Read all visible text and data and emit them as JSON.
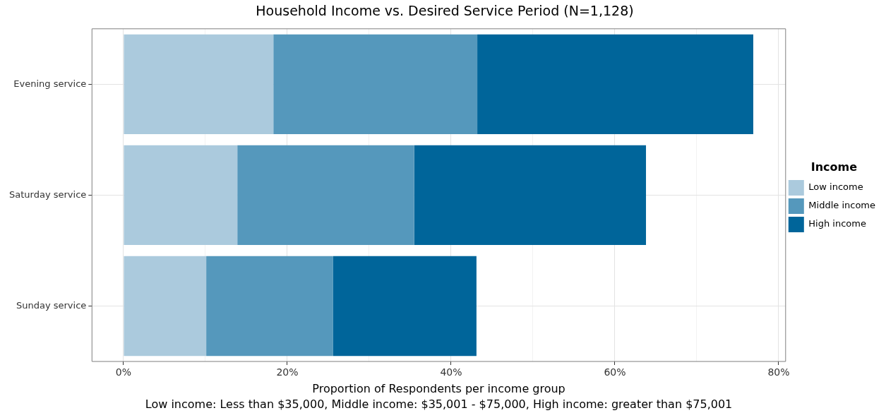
{
  "chart_data": {
    "type": "bar",
    "orientation": "horizontal",
    "stacked": true,
    "title": "Household Income vs. Desired Service Period (N=1,128)",
    "xlabel": "Proportion of Respondents per income group",
    "legend_title": "Income",
    "annotations": [
      "Low income: Less than $35,000, Middle income: $35,001 - $75,000, High income: greater than $75,001"
    ],
    "categories": [
      "Evening service",
      "Saturday service",
      "Sunday service"
    ],
    "series": [
      {
        "name": "Low income",
        "color": "#abcadd",
        "values": [
          18.3,
          13.9,
          10.1
        ]
      },
      {
        "name": "Middle income",
        "color": "#5598bc",
        "values": [
          24.9,
          21.6,
          15.5
        ]
      },
      {
        "name": "High income",
        "color": "#00659a",
        "values": [
          33.7,
          28.3,
          17.5
        ]
      }
    ],
    "xlim": [
      -3.85,
      80.85
    ],
    "xticks": [
      {
        "value": 0,
        "label": "0%"
      },
      {
        "value": 10,
        "label": null
      },
      {
        "value": 20,
        "label": "20%"
      },
      {
        "value": 30,
        "label": null
      },
      {
        "value": 40,
        "label": "40%"
      },
      {
        "value": 50,
        "label": null
      },
      {
        "value": 60,
        "label": "60%"
      },
      {
        "value": 70,
        "label": null
      },
      {
        "value": 80,
        "label": "80%"
      }
    ],
    "grid": true,
    "legend": "right"
  }
}
